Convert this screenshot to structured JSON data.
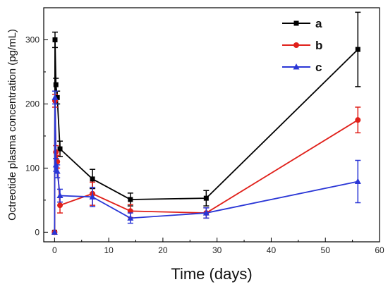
{
  "chart_data": {
    "type": "line",
    "title": "",
    "xlabel": "Time (days)",
    "ylabel": "Octreotide plasma concentration (pg/mL)",
    "xlim": [
      -2,
      60
    ],
    "ylim": [
      -15,
      350
    ],
    "xticks": [
      0,
      10,
      20,
      30,
      40,
      50,
      60
    ],
    "yticks": [
      0,
      100,
      200,
      300
    ],
    "grid": false,
    "legend": "top-right",
    "series": [
      {
        "name": "a",
        "color": "#000000",
        "marker": "square",
        "x": [
          0,
          0.083,
          0.25,
          0.5,
          1,
          7,
          14,
          28,
          56
        ],
        "y": [
          0,
          300,
          230,
          210,
          130,
          83,
          51,
          53,
          285
        ],
        "err": [
          0,
          12,
          10,
          10,
          12,
          15,
          10,
          12,
          58
        ]
      },
      {
        "name": "b",
        "color": "#e0201a",
        "marker": "circle",
        "x": [
          0,
          0.083,
          0.25,
          0.5,
          1,
          7,
          14,
          28,
          56
        ],
        "y": [
          0,
          205,
          125,
          110,
          42,
          60,
          33,
          30,
          175
        ],
        "err": [
          0,
          10,
          10,
          10,
          12,
          18,
          10,
          8,
          20
        ]
      },
      {
        "name": "c",
        "color": "#2a36d6",
        "marker": "triangle",
        "x": [
          0,
          0.083,
          0.25,
          0.5,
          1,
          7,
          14,
          28,
          56
        ],
        "y": [
          0,
          210,
          105,
          95,
          57,
          55,
          22,
          30,
          79
        ],
        "err": [
          0,
          10,
          10,
          10,
          10,
          15,
          8,
          8,
          33
        ]
      }
    ]
  }
}
